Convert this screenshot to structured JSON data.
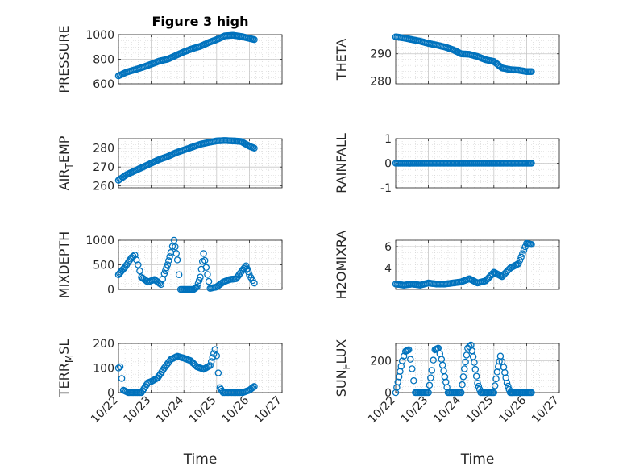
{
  "chart_data": [
    {
      "type": "scatter",
      "title": "Figure 3 high",
      "ylabel": "PRESSURE",
      "xlabel": "",
      "ylim": [
        600,
        1000
      ],
      "yticks": [
        600,
        800,
        1000
      ],
      "ytick_labels": [
        "600",
        "800",
        "1000"
      ],
      "xlim": [
        0,
        5
      ],
      "xticks": [
        0,
        1,
        2,
        3,
        4,
        5
      ],
      "xtick_labels": [],
      "x": [
        0.0,
        0.25,
        0.5,
        0.75,
        1.0,
        1.25,
        1.5,
        1.75,
        2.0,
        2.25,
        2.5,
        2.75,
        3.0,
        3.25,
        3.5,
        3.75,
        4.0,
        4.15
      ],
      "y": [
        665,
        695,
        715,
        735,
        760,
        785,
        800,
        830,
        860,
        885,
        905,
        935,
        960,
        990,
        995,
        985,
        970,
        960
      ]
    },
    {
      "type": "scatter",
      "title": "",
      "ylabel": "THETA",
      "xlabel": "",
      "ylim": [
        279,
        297
      ],
      "yticks": [
        280,
        290
      ],
      "ytick_labels": [
        "280",
        "290"
      ],
      "xlim": [
        0,
        5
      ],
      "xticks": [
        0,
        1,
        2,
        3,
        4,
        5
      ],
      "xtick_labels": [],
      "x": [
        0.0,
        0.25,
        0.5,
        0.75,
        1.0,
        1.25,
        1.5,
        1.75,
        2.0,
        2.25,
        2.5,
        2.75,
        3.0,
        3.25,
        3.5,
        3.75,
        4.0,
        4.15
      ],
      "y": [
        296.2,
        295.8,
        295.2,
        294.6,
        293.8,
        293.2,
        292.5,
        291.5,
        290.0,
        289.8,
        289.0,
        287.8,
        287.2,
        284.8,
        284.2,
        284.0,
        283.5,
        283.5
      ]
    },
    {
      "type": "scatter",
      "title": "",
      "ylabel_main": "AIR",
      "ylabel_sub": "T",
      "ylabel_rest": "EMP",
      "xlabel": "",
      "ylim": [
        259,
        285
      ],
      "yticks": [
        260,
        270,
        280
      ],
      "ytick_labels": [
        "260",
        "270",
        "280"
      ],
      "xlim": [
        0,
        5
      ],
      "xticks": [
        0,
        1,
        2,
        3,
        4,
        5
      ],
      "xtick_labels": [],
      "x": [
        0.0,
        0.25,
        0.5,
        0.75,
        1.0,
        1.25,
        1.5,
        1.75,
        2.0,
        2.25,
        2.5,
        2.75,
        3.0,
        3.25,
        3.5,
        3.75,
        4.0,
        4.15
      ],
      "y": [
        263,
        266,
        268,
        270,
        272,
        274,
        275.5,
        277.5,
        279,
        280.5,
        282,
        283,
        283.8,
        284,
        283.8,
        283.5,
        281,
        280
      ]
    },
    {
      "type": "scatter",
      "title": "",
      "ylabel": "RAINFALL",
      "xlabel": "",
      "ylim": [
        -1,
        1
      ],
      "yticks": [
        -1,
        0,
        1
      ],
      "ytick_labels": [
        "-1",
        "0",
        "1"
      ],
      "xlim": [
        0,
        5
      ],
      "xticks": [
        0,
        1,
        2,
        3,
        4,
        5
      ],
      "xtick_labels": [],
      "x": [
        0.0,
        0.25,
        0.5,
        0.75,
        1.0,
        1.25,
        1.5,
        1.75,
        2.0,
        2.25,
        2.5,
        2.75,
        3.0,
        3.25,
        3.5,
        3.75,
        4.0,
        4.15
      ],
      "y": [
        0,
        0,
        0,
        0,
        0,
        0,
        0,
        0,
        0,
        0,
        0,
        0,
        0,
        0,
        0,
        0,
        0,
        0
      ]
    },
    {
      "type": "scatter",
      "title": "",
      "ylabel": "MIXDEPTH",
      "xlabel": "",
      "ylim": [
        0,
        1000
      ],
      "yticks": [
        0,
        500,
        1000
      ],
      "ytick_labels": [
        "0",
        "500",
        "1000"
      ],
      "xlim": [
        0,
        5
      ],
      "xticks": [
        0,
        1,
        2,
        3,
        4,
        5
      ],
      "xtick_labels": [],
      "x": [
        0.0,
        0.1,
        0.2,
        0.3,
        0.4,
        0.5,
        0.6,
        0.7,
        0.9,
        1.1,
        1.3,
        1.4,
        1.5,
        1.6,
        1.7,
        1.8,
        1.9,
        2.1,
        2.3,
        2.4,
        2.5,
        2.6,
        2.8,
        3.0,
        3.2,
        3.4,
        3.6,
        3.8,
        3.9,
        4.0,
        4.1,
        4.15
      ],
      "y": [
        300,
        380,
        450,
        550,
        650,
        700,
        500,
        250,
        150,
        200,
        100,
        320,
        500,
        750,
        1000,
        600,
        0,
        0,
        0,
        50,
        250,
        730,
        20,
        50,
        150,
        200,
        220,
        400,
        480,
        300,
        180,
        130
      ]
    },
    {
      "type": "scatter",
      "title": "",
      "ylabel": "H2OMIXRA",
      "xlabel": "",
      "ylim": [
        2,
        6.6
      ],
      "yticks": [
        4,
        6
      ],
      "ytick_labels": [
        "4",
        "6"
      ],
      "xlim": [
        0,
        5
      ],
      "xticks": [
        0,
        1,
        2,
        3,
        4,
        5
      ],
      "xtick_labels": [],
      "x": [
        0.0,
        0.25,
        0.5,
        0.75,
        1.0,
        1.25,
        1.5,
        1.75,
        2.0,
        2.25,
        2.5,
        2.75,
        3.0,
        3.25,
        3.5,
        3.75,
        4.0,
        4.15
      ],
      "y": [
        2.5,
        2.4,
        2.5,
        2.4,
        2.6,
        2.5,
        2.5,
        2.6,
        2.7,
        3.0,
        2.6,
        2.8,
        3.6,
        3.2,
        4.0,
        4.4,
        6.3,
        6.2
      ]
    },
    {
      "type": "scatter",
      "title": "",
      "ylabel_main": "TERR",
      "ylabel_sub": "M",
      "ylabel_rest": "SL",
      "xlabel": "Time",
      "ylim": [
        0,
        200
      ],
      "yticks": [
        0,
        100,
        200
      ],
      "ytick_labels": [
        "0",
        "100",
        "200"
      ],
      "xlim": [
        0,
        5
      ],
      "xticks": [
        0,
        1,
        2,
        3,
        4,
        5
      ],
      "xtick_labels": [
        "10/22",
        "10/23",
        "10/24",
        "10/25",
        "10/26",
        "10/27"
      ],
      "x": [
        0.0,
        0.05,
        0.15,
        0.3,
        0.5,
        0.7,
        0.9,
        1.0,
        1.2,
        1.4,
        1.6,
        1.8,
        2.0,
        2.2,
        2.4,
        2.6,
        2.8,
        2.95,
        3.0,
        3.05,
        3.1,
        3.2,
        3.5,
        3.8,
        4.0,
        4.15
      ],
      "y": [
        100,
        105,
        10,
        0,
        0,
        0,
        40,
        45,
        60,
        100,
        135,
        148,
        140,
        130,
        105,
        95,
        110,
        175,
        150,
        80,
        20,
        0,
        0,
        0,
        10,
        25
      ]
    },
    {
      "type": "scatter",
      "title": "",
      "ylabel_main": "SUN",
      "ylabel_sub": "F",
      "ylabel_rest": "LUX",
      "xlabel": "Time",
      "ylim": [
        0,
        310
      ],
      "yticks": [
        0,
        200
      ],
      "ytick_labels": [
        "0",
        "200"
      ],
      "xlim": [
        0,
        5
      ],
      "xticks": [
        0,
        1,
        2,
        3,
        4,
        5
      ],
      "xtick_labels": [
        "10/22",
        "10/23",
        "10/24",
        "10/25",
        "10/26",
        "10/27"
      ],
      "x": [
        0.0,
        0.1,
        0.2,
        0.3,
        0.4,
        0.5,
        0.6,
        0.8,
        1.0,
        1.1,
        1.2,
        1.3,
        1.4,
        1.5,
        1.6,
        1.8,
        2.0,
        2.1,
        2.2,
        2.3,
        2.4,
        2.5,
        2.6,
        2.8,
        3.0,
        3.1,
        3.2,
        3.3,
        3.4,
        3.5,
        3.6,
        3.8,
        4.0,
        4.15
      ],
      "y": [
        0,
        100,
        200,
        260,
        270,
        150,
        0,
        0,
        0,
        140,
        270,
        280,
        210,
        100,
        0,
        0,
        0,
        150,
        280,
        300,
        190,
        60,
        0,
        0,
        0,
        130,
        230,
        160,
        60,
        0,
        0,
        0,
        0,
        0
      ]
    }
  ]
}
